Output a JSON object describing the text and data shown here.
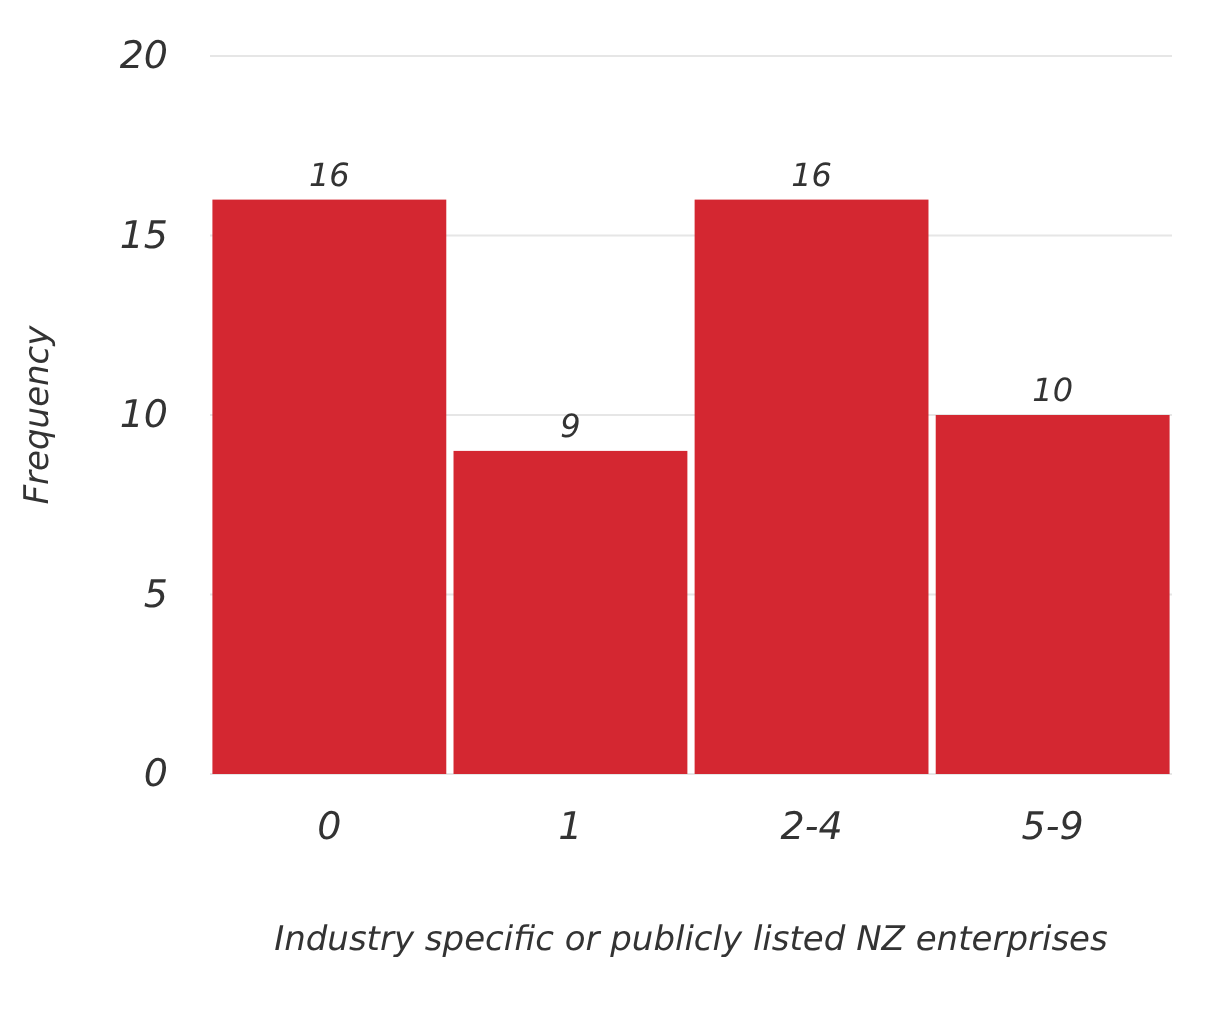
{
  "chart_data": {
    "type": "bar",
    "xlabel": "Industry specific or publicly listed NZ enterprises",
    "ylabel": "Frequency",
    "categories": [
      "0",
      "1",
      "2-4",
      "5-9"
    ],
    "values": [
      16,
      9,
      16,
      10
    ],
    "color": "#d42731",
    "ylim": [
      0,
      20
    ],
    "yticks": [
      0,
      5,
      10,
      15,
      20
    ],
    "grid": "y",
    "data_labels": true
  }
}
